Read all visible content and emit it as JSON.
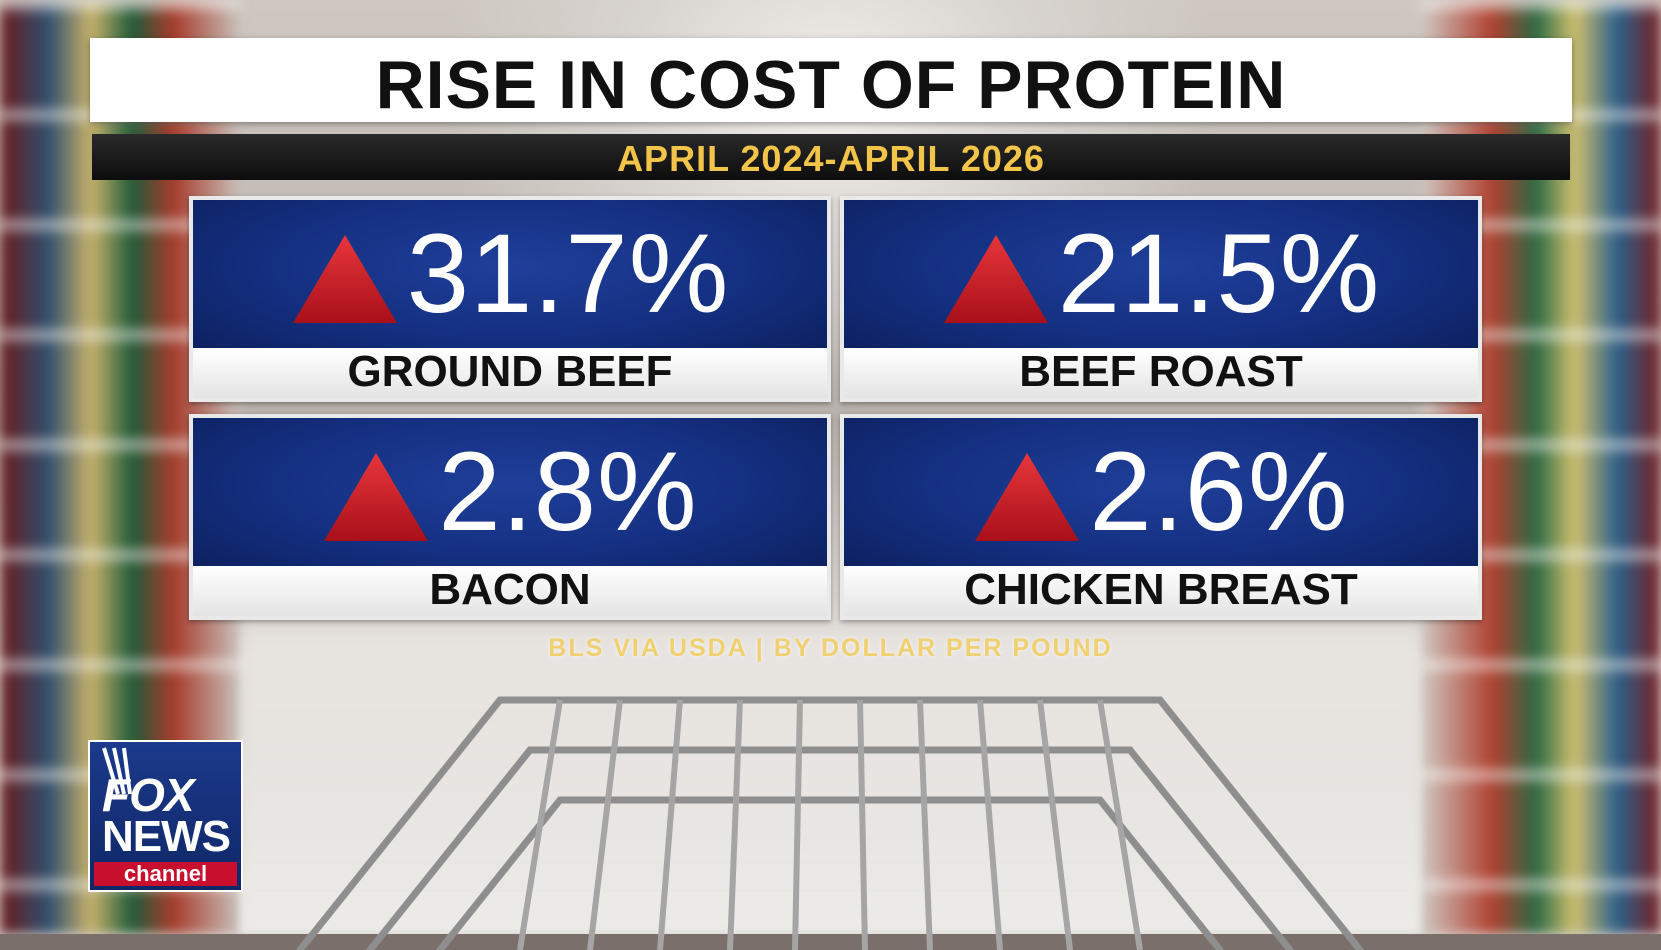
{
  "graphic": {
    "title": "RISE IN COST OF PROTEIN",
    "subtitle": "APRIL 2024-APRIL 2026",
    "source": "BLS VIA USDA | BY DOLLAR PER POUND"
  },
  "stats": [
    {
      "value": "31.7%",
      "label": "GROUND BEEF",
      "direction_icon": "up-triangle-icon"
    },
    {
      "value": "21.5%",
      "label": "BEEF ROAST",
      "direction_icon": "up-triangle-icon"
    },
    {
      "value": "2.8%",
      "label": "BACON",
      "direction_icon": "up-triangle-icon"
    },
    {
      "value": "2.6%",
      "label": "CHICKEN BREAST",
      "direction_icon": "up-triangle-icon"
    }
  ],
  "logo": {
    "line1": "FOX",
    "line2": "NEWS",
    "line3": "channel"
  },
  "colors": {
    "card_blue": "#142f80",
    "triangle_red": "#d4232a",
    "subtitle_gold": "#f3c44a"
  }
}
